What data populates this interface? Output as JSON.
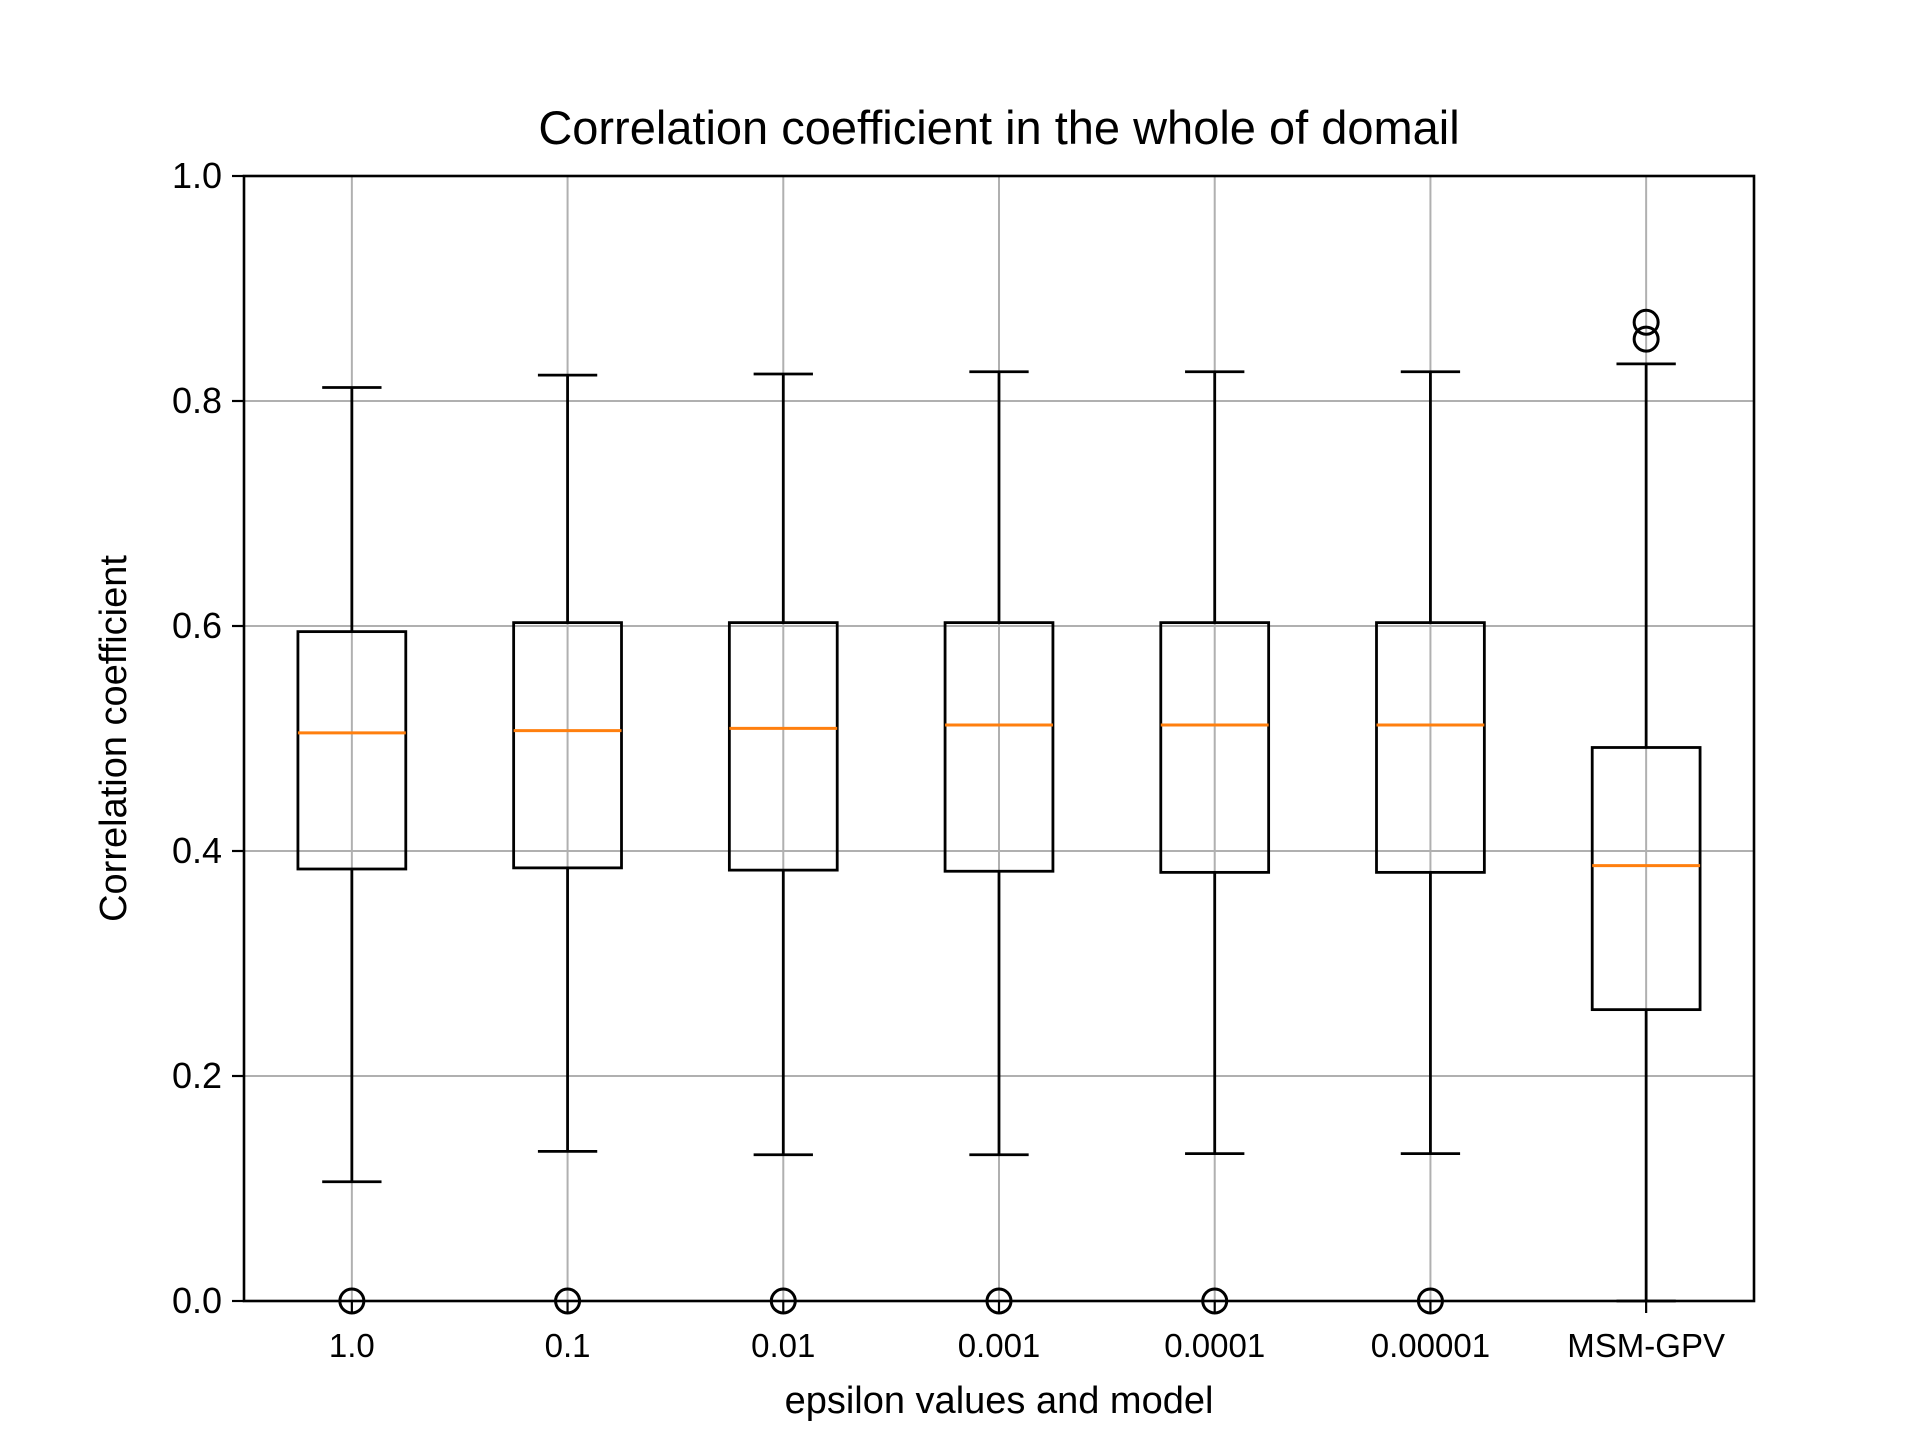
{
  "chart_data": {
    "type": "boxplot",
    "title": "Correlation coefficient in the whole of domail",
    "xlabel": "epsilon values and model",
    "ylabel": "Correlation coefficient",
    "ylim": [
      0.0,
      1.0
    ],
    "yticks": [
      0.0,
      0.2,
      0.4,
      0.6,
      0.8,
      1.0
    ],
    "ytick_labels": [
      "0.0",
      "0.2",
      "0.4",
      "0.6",
      "0.8",
      "1.0"
    ],
    "grid": true,
    "categories": [
      "1.0",
      "0.1",
      "0.01",
      "0.001",
      "0.0001",
      "0.00001",
      "MSM-GPV"
    ],
    "boxes": [
      {
        "category": "1.0",
        "whisker_low": 0.106,
        "q1": 0.384,
        "median": 0.505,
        "q3": 0.595,
        "whisker_high": 0.812,
        "outliers": [
          0.0
        ]
      },
      {
        "category": "0.1",
        "whisker_low": 0.133,
        "q1": 0.385,
        "median": 0.507,
        "q3": 0.603,
        "whisker_high": 0.823,
        "outliers": [
          0.0
        ]
      },
      {
        "category": "0.01",
        "whisker_low": 0.13,
        "q1": 0.383,
        "median": 0.509,
        "q3": 0.603,
        "whisker_high": 0.824,
        "outliers": [
          0.0
        ]
      },
      {
        "category": "0.001",
        "whisker_low": 0.13,
        "q1": 0.382,
        "median": 0.512,
        "q3": 0.603,
        "whisker_high": 0.826,
        "outliers": [
          0.0
        ]
      },
      {
        "category": "0.0001",
        "whisker_low": 0.131,
        "q1": 0.381,
        "median": 0.512,
        "q3": 0.603,
        "whisker_high": 0.826,
        "outliers": [
          0.0
        ]
      },
      {
        "category": "0.00001",
        "whisker_low": 0.131,
        "q1": 0.381,
        "median": 0.512,
        "q3": 0.603,
        "whisker_high": 0.826,
        "outliers": [
          0.0
        ]
      },
      {
        "category": "MSM-GPV",
        "whisker_low": 0.0,
        "q1": 0.259,
        "median": 0.387,
        "q3": 0.492,
        "whisker_high": 0.833,
        "outliers": [
          0.855,
          0.87
        ]
      }
    ],
    "colors": {
      "box": "#000000",
      "median": "#ff7f0e",
      "grid": "#b0b0b0",
      "axes": "#000000"
    }
  }
}
